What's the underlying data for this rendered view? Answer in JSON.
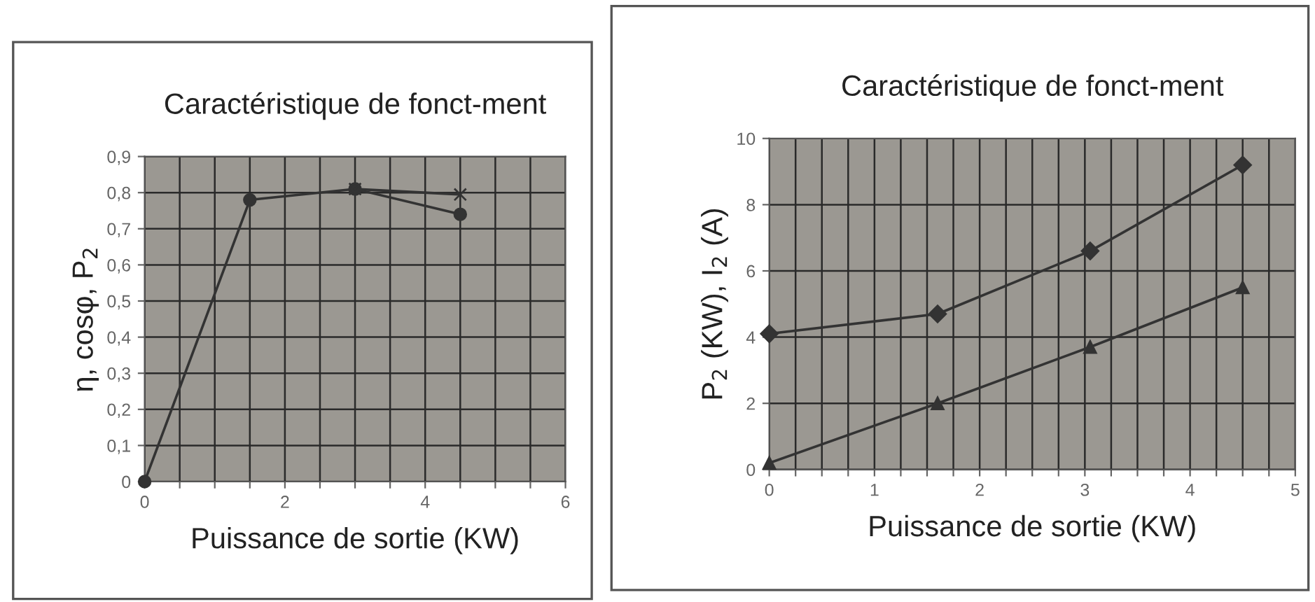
{
  "chart_data": [
    {
      "type": "line",
      "title": "Caractéristique de fonct-ment",
      "xlabel": "Puissance de sortie (KW)",
      "ylabel": "η, cosφ, P$_{2}$",
      "series": [
        {
          "color": "#333333",
          "x": [
            0,
            1.5,
            3,
            4.5
          ],
          "values": [
            0,
            0.78,
            0.81,
            0.74
          ],
          "marker": "circle"
        },
        {
          "color": "#333333",
          "x": [
            3,
            4.5
          ],
          "values": [
            0.81,
            0.795
          ],
          "marker": "cross"
        }
      ],
      "xlim": [
        0,
        6
      ],
      "xticks": [
        0,
        {
          "value": 0.5,
          "label": null
        },
        {
          "value": 1,
          "label": null
        },
        {
          "value": 1.5,
          "label": null
        },
        2,
        {
          "value": 2.5,
          "label": null
        },
        {
          "value": 3,
          "label": null
        },
        {
          "value": 3.5,
          "label": null
        },
        4,
        {
          "value": 4.5,
          "label": null
        },
        {
          "value": 5,
          "label": null
        },
        {
          "value": 5.5,
          "label": null
        },
        6
      ],
      "ylim": [
        0,
        0.9
      ],
      "yticks": [
        0,
        {
          "value": 0.1,
          "label": "0,1"
        },
        {
          "value": 0.2,
          "label": "0,2"
        },
        {
          "value": 0.3,
          "label": "0,3"
        },
        {
          "value": 0.4,
          "label": "0,4"
        },
        {
          "value": 0.5,
          "label": "0,5"
        },
        {
          "value": 0.6,
          "label": "0,6"
        },
        {
          "value": 0.7,
          "label": "0,7"
        },
        {
          "value": 0.8,
          "label": "0,8"
        },
        {
          "value": 0.9,
          "label": "0,9"
        }
      ],
      "grid": true,
      "line_style": "solid",
      "legend": false
    },
    {
      "type": "line",
      "title": "Caractéristique de fonct-ment",
      "xlabel": "Puissance de sortie (KW)",
      "ylabel": "P$_{2}$ (KW), I$_{2}$ (A)",
      "series": [
        {
          "color": "#333333",
          "x": [
            0,
            1.6,
            3.05,
            4.5
          ],
          "values": [
            4.1,
            4.7,
            6.6,
            9.2
          ],
          "marker": "diamond"
        },
        {
          "color": "#333333",
          "x": [
            0,
            1.6,
            3.05,
            4.5
          ],
          "values": [
            0.2,
            2.0,
            3.7,
            5.5
          ],
          "marker": "triangle"
        }
      ],
      "xlim": [
        0,
        5
      ],
      "xticks": [
        0,
        {
          "value": 0.25,
          "label": null
        },
        {
          "value": 0.5,
          "label": null
        },
        {
          "value": 0.75,
          "label": null
        },
        1,
        {
          "value": 1.25,
          "label": null
        },
        {
          "value": 1.5,
          "label": null
        },
        {
          "value": 1.75,
          "label": null
        },
        2,
        {
          "value": 2.25,
          "label": null
        },
        {
          "value": 2.5,
          "label": null
        },
        {
          "value": 2.75,
          "label": null
        },
        3,
        {
          "value": 3.25,
          "label": null
        },
        {
          "value": 3.5,
          "label": null
        },
        {
          "value": 3.75,
          "label": null
        },
        4,
        {
          "value": 4.25,
          "label": null
        },
        {
          "value": 4.5,
          "label": null
        },
        {
          "value": 4.75,
          "label": null
        },
        5
      ],
      "ylim": [
        0,
        10
      ],
      "yticks": [
        0,
        2,
        4,
        6,
        8,
        10
      ],
      "grid": true,
      "line_style": "solid",
      "legend": false
    }
  ]
}
